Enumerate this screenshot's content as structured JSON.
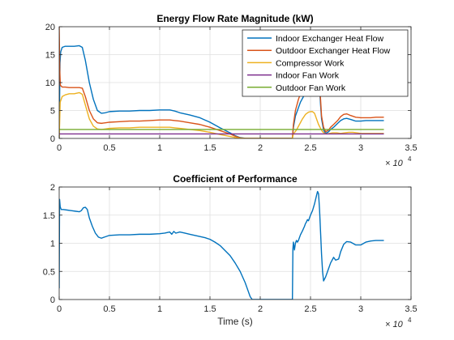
{
  "figure": {
    "background": "#ffffff"
  },
  "chart_data": [
    {
      "type": "line",
      "title": "Energy Flow Rate Magnitude (kW)",
      "xlabel": "",
      "ylabel": "",
      "xlim": [
        0,
        35000
      ],
      "ylim": [
        0,
        20
      ],
      "xticks": [
        0,
        5000,
        10000,
        15000,
        20000,
        25000,
        30000,
        35000
      ],
      "xtick_labels": [
        "0",
        "0.5",
        "1",
        "1.5",
        "2",
        "2.5",
        "3",
        "3.5"
      ],
      "x_multiplier": {
        "base": "× 10",
        "exponent": "4"
      },
      "yticks": [
        0,
        5,
        10,
        15,
        20
      ],
      "ytick_labels": [
        "0",
        "5",
        "10",
        "15",
        "20"
      ],
      "grid": true,
      "legend_position": "top-right",
      "series": [
        {
          "name": "Indoor Exchanger Heat Flow",
          "color": "#0072BD",
          "x": [
            0,
            80,
            150,
            300,
            600,
            1000,
            1500,
            2000,
            2300,
            2600,
            3000,
            3400,
            3800,
            4200,
            4600,
            5000,
            6000,
            7000,
            8000,
            9000,
            10000,
            11000,
            11500,
            12000,
            13000,
            14000,
            15000,
            16000,
            17000,
            17500,
            18000,
            18500,
            19000,
            19200,
            20000,
            21000,
            22000,
            23000,
            23200,
            23300,
            23500,
            23800,
            24000,
            24300,
            24700,
            25000,
            25300,
            25500,
            25700,
            25900,
            26000,
            26100,
            26300,
            26500,
            26800,
            27000,
            27300,
            27700,
            28000,
            28300,
            28600,
            29000,
            29500,
            30000,
            30500,
            31000,
            31500,
            32300
          ],
          "y": [
            0,
            13.5,
            15.5,
            16.3,
            16.5,
            16.5,
            16.5,
            16.6,
            16.3,
            14.0,
            10.0,
            7.0,
            5.0,
            4.5,
            4.6,
            4.8,
            4.9,
            4.9,
            5.0,
            5.0,
            5.1,
            5.1,
            4.9,
            4.6,
            4.2,
            3.7,
            2.9,
            1.9,
            1.0,
            0.5,
            0.15,
            0.02,
            0.0,
            0.0,
            0.0,
            0.0,
            0.0,
            0.0,
            0.0,
            2.0,
            4.0,
            5.5,
            6.5,
            7.5,
            8.5,
            9.3,
            9.8,
            10.0,
            10.0,
            9.0,
            6.0,
            3.5,
            1.5,
            0.9,
            1.2,
            1.6,
            2.0,
            2.7,
            3.2,
            3.5,
            3.6,
            3.4,
            3.1,
            3.1,
            3.2,
            3.2,
            3.2,
            3.2
          ]
        },
        {
          "name": "Outdoor Exchanger Heat Flow",
          "color": "#D95319",
          "x": [
            0,
            60,
            120,
            300,
            600,
            1000,
            1500,
            2000,
            2300,
            2600,
            3000,
            3400,
            3800,
            4200,
            4600,
            5000,
            6000,
            7000,
            8000,
            9000,
            10000,
            11000,
            11500,
            12000,
            13000,
            14000,
            15000,
            16000,
            17000,
            17500,
            18000,
            18500,
            19000,
            19200,
            20000,
            21000,
            22000,
            23000,
            23200,
            23300,
            23500,
            23800,
            24000,
            24300,
            24700,
            25000,
            25300,
            25500,
            25700,
            25900,
            26000,
            26100,
            26300,
            26500,
            26800,
            27000,
            27300,
            27700,
            28000,
            28300,
            28600,
            29000,
            29500,
            30000,
            30500,
            31000,
            31500,
            32300
          ],
          "y": [
            20,
            12.0,
            9.5,
            9.2,
            9.2,
            9.1,
            9.1,
            9.1,
            9.0,
            7.5,
            5.0,
            3.5,
            2.8,
            2.7,
            2.8,
            2.9,
            3.0,
            3.1,
            3.1,
            3.2,
            3.3,
            3.3,
            3.2,
            3.1,
            2.8,
            2.5,
            2.0,
            1.4,
            0.8,
            0.4,
            0.1,
            0.0,
            0.0,
            0.0,
            0.0,
            0.0,
            0.0,
            0.0,
            0.0,
            2.5,
            5.0,
            7.0,
            8.0,
            9.0,
            9.5,
            10.0,
            10.0,
            10.0,
            10.0,
            9.5,
            7.0,
            4.0,
            2.0,
            1.2,
            1.5,
            2.0,
            2.5,
            3.2,
            3.9,
            4.3,
            4.4,
            4.1,
            3.8,
            3.7,
            3.7,
            3.7,
            3.8,
            3.8
          ]
        },
        {
          "name": "Compressor Work",
          "color": "#EDB120",
          "x": [
            0,
            100,
            300,
            600,
            1000,
            1500,
            2000,
            2300,
            2600,
            3000,
            3400,
            3800,
            4200,
            4600,
            5000,
            6000,
            7000,
            8000,
            9000,
            10000,
            11000,
            11500,
            12000,
            13000,
            14000,
            15000,
            16000,
            17000,
            17500,
            18000,
            18500,
            19000,
            19200,
            20000,
            21000,
            22000,
            23000,
            23200,
            23300,
            23600,
            23900,
            24200,
            24500,
            24800,
            25000,
            25200,
            25400,
            25600,
            25800,
            26000,
            26200,
            26400,
            26600,
            26900,
            27200,
            27600,
            28000,
            28400,
            28800,
            29200,
            29600,
            30000,
            31000,
            32300
          ],
          "y": [
            0,
            6.5,
            7.5,
            7.8,
            8.0,
            8.0,
            8.2,
            7.9,
            6.0,
            3.5,
            2.2,
            1.7,
            1.6,
            1.7,
            1.8,
            1.9,
            1.9,
            2.0,
            2.0,
            2.0,
            2.0,
            1.9,
            1.8,
            1.6,
            1.4,
            1.1,
            0.7,
            0.35,
            0.18,
            0.05,
            0.0,
            0.0,
            0.0,
            0.0,
            0.0,
            0.0,
            0.0,
            0.0,
            0.8,
            1.5,
            2.5,
            3.5,
            4.3,
            4.7,
            4.8,
            4.8,
            4.5,
            3.5,
            2.5,
            1.8,
            1.2,
            0.9,
            0.8,
            0.9,
            1.0,
            1.0,
            0.9,
            1.0,
            1.1,
            1.1,
            1.0,
            0.9,
            0.9,
            0.9
          ]
        },
        {
          "name": "Indoor Fan Work",
          "color": "#7E2F8E",
          "x": [
            0,
            32300
          ],
          "y": [
            0.8,
            0.8
          ]
        },
        {
          "name": "Outdoor Fan Work",
          "color": "#77AC30",
          "x": [
            0,
            32300
          ],
          "y": [
            1.6,
            1.6
          ]
        }
      ]
    },
    {
      "type": "line",
      "title": "Coefficient of Performance",
      "xlabel": "Time (s)",
      "ylabel": "",
      "xlim": [
        0,
        35000
      ],
      "ylim": [
        0,
        2
      ],
      "xticks": [
        0,
        5000,
        10000,
        15000,
        20000,
        25000,
        30000,
        35000
      ],
      "xtick_labels": [
        "0",
        "0.5",
        "1",
        "1.5",
        "2",
        "2.5",
        "3",
        "3.5"
      ],
      "x_multiplier": {
        "base": "× 10",
        "exponent": "4"
      },
      "yticks": [
        0,
        0.5,
        1,
        1.5,
        2
      ],
      "ytick_labels": [
        "0",
        "0.5",
        "1",
        "1.5",
        "2"
      ],
      "grid": true,
      "legend_position": "none",
      "series": [
        {
          "color": "#0072BD",
          "x": [
            0,
            40,
            100,
            200,
            400,
            800,
            1200,
            1600,
            2000,
            2200,
            2400,
            2600,
            2800,
            3000,
            3300,
            3600,
            3900,
            4200,
            4500,
            5000,
            6000,
            7000,
            8000,
            9000,
            10000,
            10500,
            11000,
            11200,
            11400,
            11600,
            12000,
            12500,
            13000,
            13500,
            14000,
            14500,
            15000,
            15500,
            16000,
            16500,
            17000,
            17500,
            18000,
            18500,
            18800,
            19000,
            19200,
            20000,
            21000,
            22000,
            23000,
            23200,
            23250,
            23300,
            23400,
            23500,
            23600,
            23700,
            23800,
            24000,
            24200,
            24400,
            24500,
            24600,
            24700,
            24800,
            25000,
            25200,
            25400,
            25600,
            25700,
            25800,
            25900,
            26000,
            26100,
            26200,
            26300,
            26500,
            26800,
            27000,
            27300,
            27500,
            27800,
            28000,
            28300,
            28600,
            29000,
            29500,
            30000,
            30500,
            31000,
            31500,
            32300
          ],
          "y": [
            0.2,
            1.78,
            1.65,
            1.6,
            1.6,
            1.59,
            1.58,
            1.57,
            1.56,
            1.58,
            1.63,
            1.64,
            1.6,
            1.45,
            1.3,
            1.18,
            1.11,
            1.09,
            1.11,
            1.14,
            1.15,
            1.15,
            1.16,
            1.16,
            1.17,
            1.18,
            1.2,
            1.16,
            1.21,
            1.18,
            1.2,
            1.18,
            1.16,
            1.14,
            1.12,
            1.1,
            1.07,
            1.02,
            0.96,
            0.87,
            0.78,
            0.65,
            0.5,
            0.3,
            0.15,
            0.05,
            0.0,
            0.0,
            0.0,
            0.0,
            0.0,
            0.0,
            0.9,
            1.02,
            0.88,
            1.0,
            1.05,
            1.02,
            1.05,
            1.15,
            1.22,
            1.3,
            1.35,
            1.38,
            1.42,
            1.4,
            1.5,
            1.58,
            1.7,
            1.85,
            1.92,
            1.88,
            1.6,
            1.2,
            0.8,
            0.5,
            0.33,
            0.4,
            0.55,
            0.65,
            0.75,
            0.7,
            0.72,
            0.85,
            0.98,
            1.03,
            1.02,
            0.97,
            0.97,
            1.02,
            1.04,
            1.05,
            1.05
          ]
        }
      ]
    }
  ]
}
